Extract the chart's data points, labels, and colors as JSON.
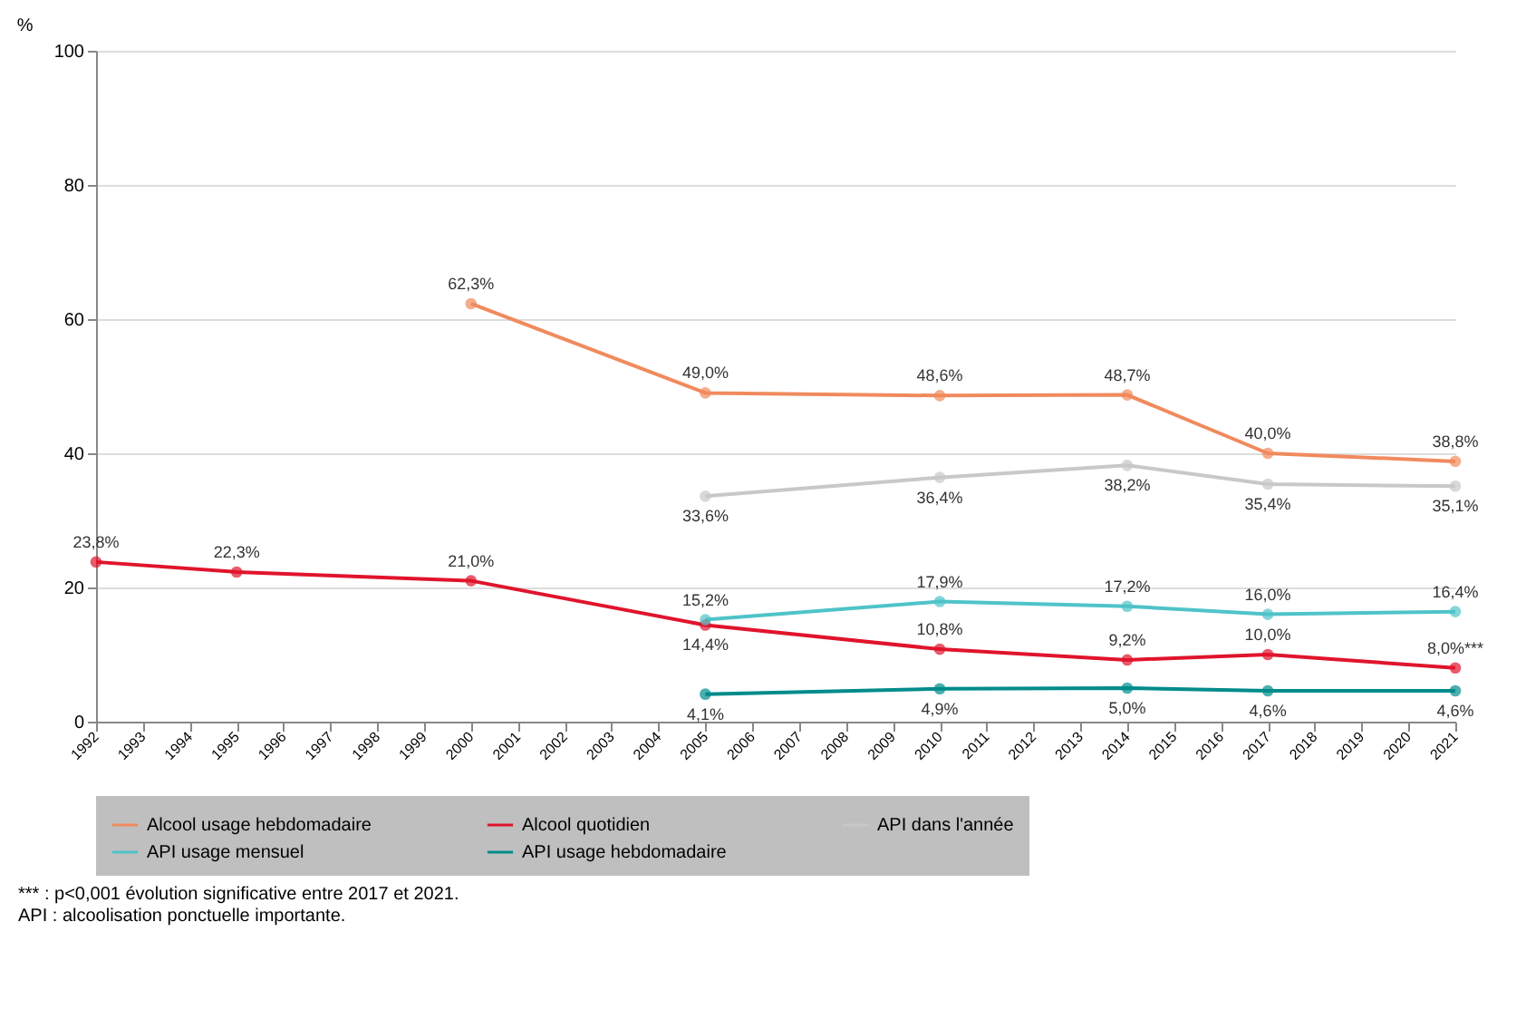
{
  "chart_data": {
    "type": "line",
    "ylabel": "%",
    "x": [
      1992,
      1995,
      2000,
      2005,
      2010,
      2014,
      2017,
      2021
    ],
    "xlim": [
      1992,
      2021
    ],
    "xticks": [
      1992,
      1993,
      1994,
      1995,
      1996,
      1997,
      1998,
      1999,
      2000,
      2001,
      2002,
      2003,
      2004,
      2005,
      2006,
      2007,
      2008,
      2009,
      2010,
      2011,
      2012,
      2013,
      2014,
      2015,
      2016,
      2017,
      2018,
      2019,
      2020,
      2021
    ],
    "ylim": [
      0,
      100
    ],
    "yticks": [
      0,
      20,
      40,
      60,
      80,
      100
    ],
    "grid": "y",
    "legend": "bottom",
    "marker": "circle",
    "series": [
      {
        "name": "Alcool usage hebdomadaire",
        "color": "#f08a5d",
        "values": [
          null,
          null,
          62.3,
          49.0,
          48.6,
          48.7,
          40.0,
          38.8
        ],
        "value_labels": [
          null,
          null,
          "62,3%",
          "49,0%",
          "48,6%",
          "48,7%",
          "40,0%",
          "38,8%"
        ]
      },
      {
        "name": "Alcool quotidien",
        "color": "#e0142c",
        "values": [
          23.8,
          22.3,
          21.0,
          14.4,
          10.8,
          9.2,
          10.0,
          8.0
        ],
        "value_labels": [
          "23,8%",
          "22,3%",
          "21,0%",
          "14,4%",
          "10,8%",
          "9,2%",
          "10,0%",
          "8,0%***"
        ]
      },
      {
        "name": "API dans l'année",
        "color": "#c8c8c8",
        "values": [
          null,
          null,
          null,
          33.6,
          36.4,
          38.2,
          35.4,
          35.1
        ],
        "value_labels": [
          null,
          null,
          null,
          "33,6%",
          "36,4%",
          "38,2%",
          "35,4%",
          "35,1%"
        ]
      },
      {
        "name": "API usage mensuel",
        "color": "#4fc3c8",
        "values": [
          null,
          null,
          null,
          15.2,
          17.9,
          17.2,
          16.0,
          16.4
        ],
        "value_labels": [
          null,
          null,
          null,
          "15,2%",
          "17,9%",
          "17,2%",
          "16,0%",
          "16,4%"
        ]
      },
      {
        "name": "API usage hebdomadaire",
        "color": "#008b8b",
        "values": [
          null,
          null,
          null,
          4.1,
          4.9,
          5.0,
          4.6,
          4.6
        ],
        "value_labels": [
          null,
          null,
          null,
          "4,1%",
          "4,9%",
          "5,0%",
          "4,6%",
          "4,6%"
        ]
      }
    ],
    "annotations": [
      "*** : p<0,001 évolution significative entre 2017 et 2021.",
      "API : alcoolisation ponctuelle importante."
    ]
  }
}
